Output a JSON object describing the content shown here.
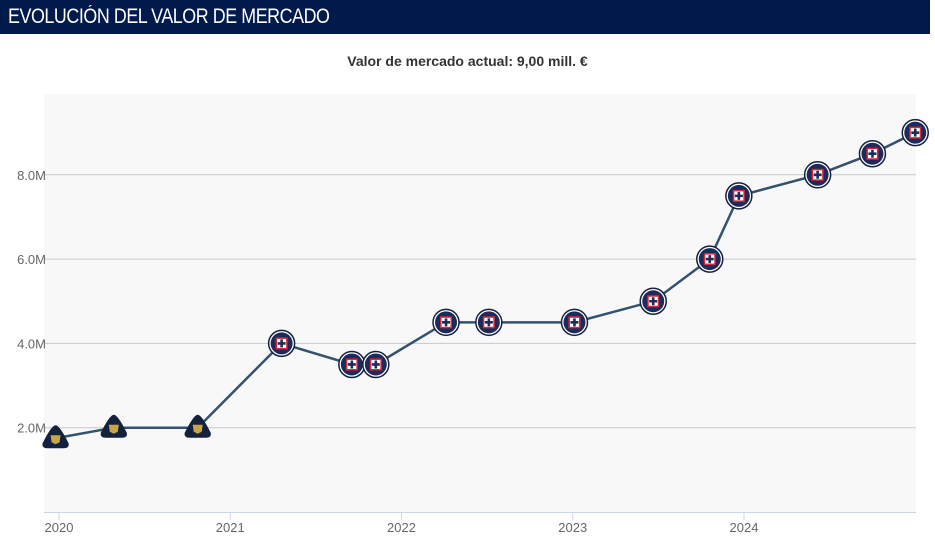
{
  "header": {
    "title": "EVOLUCIÓN DEL VALOR DE MERCADO"
  },
  "subtitle": "Valor de mercado actual: 9,00 mill. €",
  "chart_data": {
    "type": "line",
    "x_ticks": [
      "2020",
      "2021",
      "2022",
      "2023",
      "2024"
    ],
    "y_ticks": [
      "2.0M",
      "4.0M",
      "6.0M",
      "8.0M"
    ],
    "ylim": [
      0,
      9.9
    ],
    "xlim": [
      2019.92,
      2025.02
    ],
    "grid": "horizontal",
    "line_color": "#34516f",
    "series": [
      {
        "points": [
          {
            "x": 2019.98,
            "y": 1.75,
            "club": "pumas"
          },
          {
            "x": 2020.32,
            "y": 2.0,
            "club": "pumas"
          },
          {
            "x": 2020.81,
            "y": 2.0,
            "club": "pumas"
          },
          {
            "x": 2021.3,
            "y": 4.0,
            "club": "cruz-azul"
          },
          {
            "x": 2021.71,
            "y": 3.5,
            "club": "cruz-azul"
          },
          {
            "x": 2021.85,
            "y": 3.5,
            "club": "cruz-azul"
          },
          {
            "x": 2022.26,
            "y": 4.5,
            "club": "cruz-azul"
          },
          {
            "x": 2022.51,
            "y": 4.5,
            "club": "cruz-azul"
          },
          {
            "x": 2023.01,
            "y": 4.5,
            "club": "cruz-azul"
          },
          {
            "x": 2023.47,
            "y": 5.0,
            "club": "cruz-azul"
          },
          {
            "x": 2023.8,
            "y": 6.0,
            "club": "cruz-azul"
          },
          {
            "x": 2023.97,
            "y": 7.5,
            "club": "cruz-azul"
          },
          {
            "x": 2024.43,
            "y": 8.0,
            "club": "cruz-azul"
          },
          {
            "x": 2024.75,
            "y": 8.5,
            "club": "cruz-azul"
          },
          {
            "x": 2025.0,
            "y": 9.0,
            "club": "cruz-azul"
          }
        ]
      }
    ]
  }
}
